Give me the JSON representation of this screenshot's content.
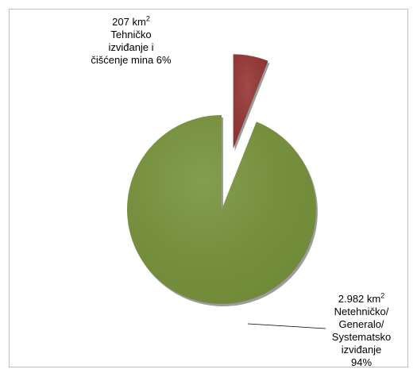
{
  "chart_data": {
    "type": "pie",
    "slices": [
      {
        "value_km2": 207,
        "percent": 6,
        "color": "#953735",
        "exploded": true,
        "label": {
          "value": "207 km",
          "unit_sup": "2",
          "lines": [
            "Tehničko",
            "izviđanje i",
            "čišćenje mina 6%"
          ]
        }
      },
      {
        "value_km2": 2982,
        "percent": 94,
        "color": "#77933c",
        "exploded": false,
        "label": {
          "value": "2.982 km",
          "unit_sup": "2",
          "lines": [
            "Netehničko/",
            "Generalo/",
            "Systematsko",
            "izviđanje",
            "94%"
          ]
        }
      }
    ],
    "start_angle": "12 o'clock",
    "direction": "clockwise",
    "legend": "none"
  }
}
